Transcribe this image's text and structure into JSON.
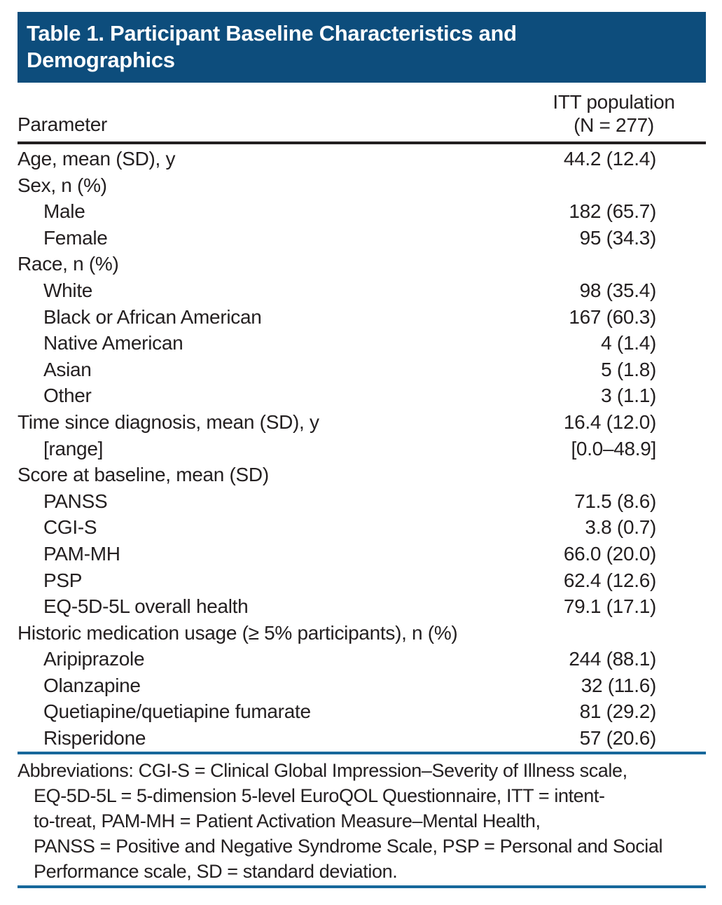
{
  "figure": {
    "title_lines": [
      "Table 1. Participant Baseline Characteristics and",
      "Demographics"
    ]
  },
  "columns": {
    "parameter_label": "Parameter",
    "population_header_line1": "ITT population",
    "population_header_line2": "(N = 277)"
  },
  "table": {
    "rows": [
      {
        "label": "Age, mean (SD), y",
        "value": "44.2 (12.4)",
        "indent": false
      },
      {
        "label": "Sex, n (%)",
        "value": "",
        "indent": false
      },
      {
        "label": "Male",
        "value": "182 (65.7)",
        "indent": true
      },
      {
        "label": "Female",
        "value": "95 (34.3)",
        "indent": true
      },
      {
        "label": "Race, n (%)",
        "value": "",
        "indent": false
      },
      {
        "label": "White",
        "value": "98 (35.4)",
        "indent": true
      },
      {
        "label": "Black or African American",
        "value": "167 (60.3)",
        "indent": true
      },
      {
        "label": "Native American",
        "value": "4 (1.4)",
        "indent": true
      },
      {
        "label": "Asian",
        "value": "5 (1.8)",
        "indent": true
      },
      {
        "label": "Other",
        "value": "3 (1.1)",
        "indent": true
      },
      {
        "label": "Time since diagnosis, mean (SD), y",
        "value": "16.4 (12.0)",
        "indent": false
      },
      {
        "label": "[range]",
        "value": "[0.0–48.9]",
        "indent": true
      },
      {
        "label": "Score at baseline, mean (SD)",
        "value": "",
        "indent": false
      },
      {
        "label": "PANSS",
        "value": "71.5 (8.6)",
        "indent": true
      },
      {
        "label": "CGI-S",
        "value": "3.8 (0.7)",
        "indent": true
      },
      {
        "label": "PAM-MH",
        "value": "66.0 (20.0)",
        "indent": true
      },
      {
        "label": "PSP",
        "value": "62.4 (12.6)",
        "indent": true
      },
      {
        "label": "EQ-5D-5L overall health",
        "value": "79.1 (17.1)",
        "indent": true
      },
      {
        "label": "Historic medication usage (≥ 5% participants), n (%)",
        "value": "",
        "indent": false
      },
      {
        "label": "Aripiprazole",
        "value": "244 (88.1)",
        "indent": true
      },
      {
        "label": "Olanzapine",
        "value": "32 (11.6)",
        "indent": true
      },
      {
        "label": "Quetiapine/quetiapine fumarate",
        "value": "81 (29.2)",
        "indent": true
      },
      {
        "label": "Risperidone",
        "value": "57 (20.6)",
        "indent": true
      }
    ]
  },
  "footnote": {
    "lines": [
      {
        "text": "Abbreviations: CGI-S = Clinical Global Impression–Severity of Illness scale,",
        "indent": false
      },
      {
        "text": "EQ-5D-5L = 5-dimension 5-level EuroQOL Questionnaire, ITT = intent-",
        "indent": true
      },
      {
        "text": "to-treat, PAM-MH = Patient Activation Measure–Mental Health,",
        "indent": true
      },
      {
        "text": "PANSS = Positive and Negative Syndrome Scale, PSP = Personal and Social",
        "indent": true
      },
      {
        "text": "Performance scale, SD = standard deviation.",
        "indent": true
      }
    ]
  },
  "colors": {
    "title_bar_background": "#0d4d7c",
    "title_text": "#ffffff",
    "header_divider": "#231f20",
    "rule_blue": "#17689b",
    "body_text": "#231f20",
    "page_background": "#ffffff"
  }
}
